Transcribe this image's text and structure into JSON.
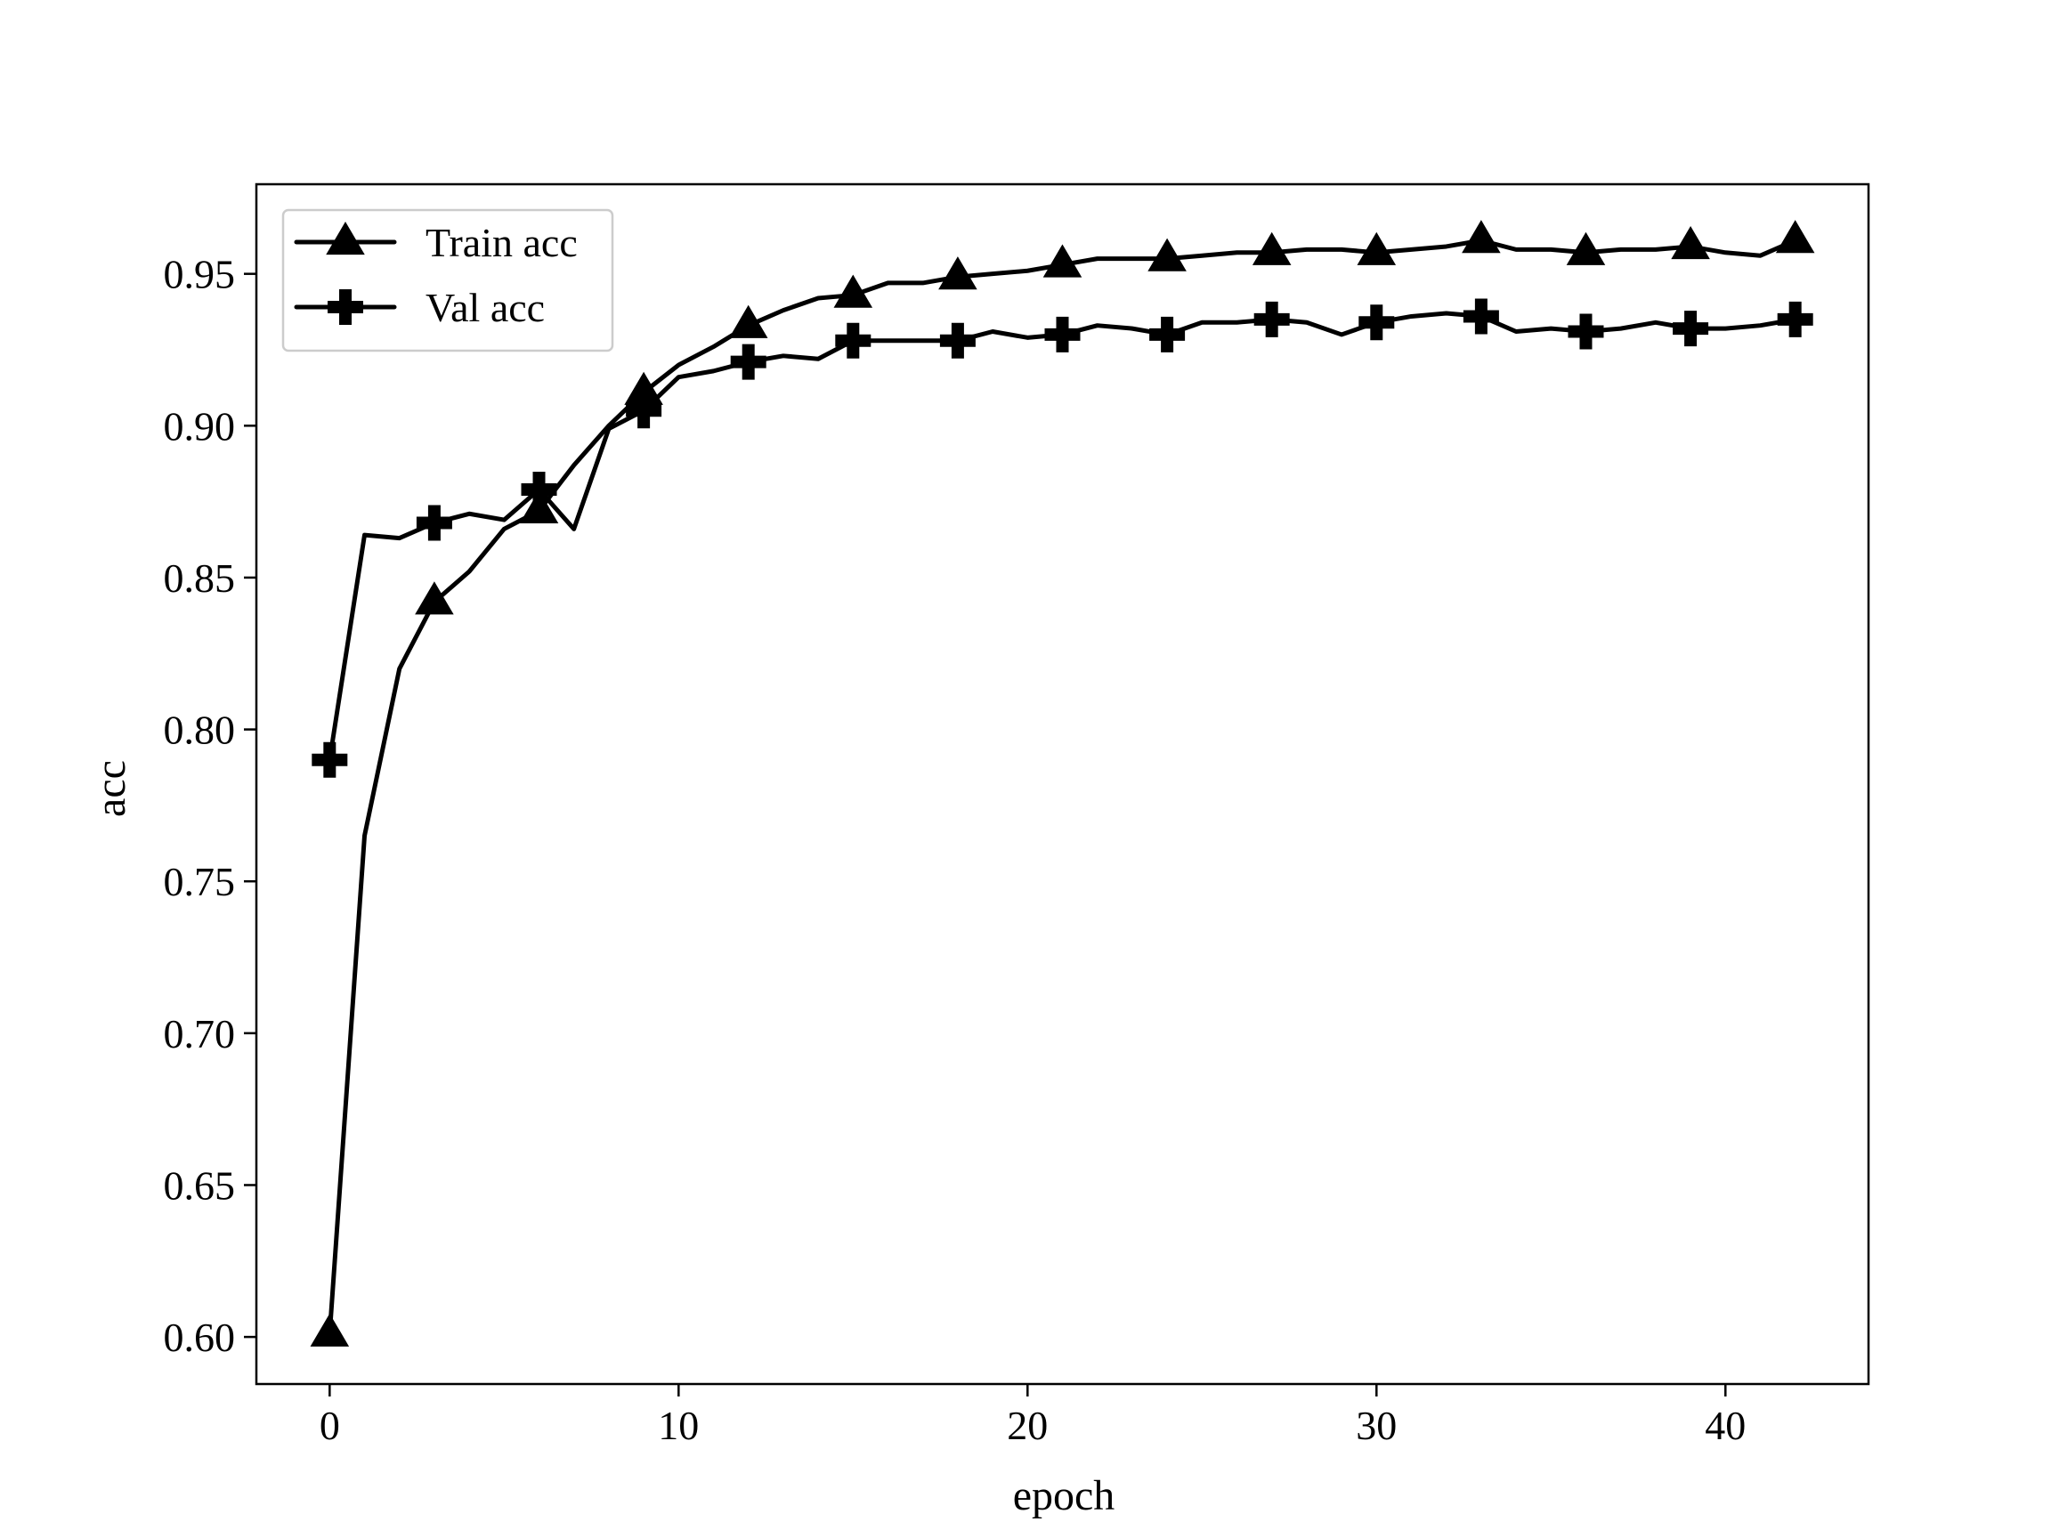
{
  "chart_data": {
    "type": "line",
    "title": "",
    "xlabel": "epoch",
    "ylabel": "acc",
    "xlim": [
      -2.1,
      44.1
    ],
    "ylim": [
      0.5845,
      0.9795
    ],
    "x_ticks": [
      0,
      10,
      20,
      30,
      40
    ],
    "x_tick_labels": [
      "0",
      "10",
      "20",
      "30",
      "40"
    ],
    "y_ticks": [
      0.6,
      0.65,
      0.7,
      0.75,
      0.8,
      0.85,
      0.9,
      0.95
    ],
    "y_tick_labels": [
      "0.60",
      "0.65",
      "0.70",
      "0.75",
      "0.80",
      "0.85",
      "0.90",
      "0.95"
    ],
    "grid": false,
    "legend_position": "top-left",
    "x": [
      0,
      1,
      2,
      3,
      4,
      5,
      6,
      7,
      8,
      9,
      10,
      11,
      12,
      13,
      14,
      15,
      16,
      17,
      18,
      19,
      20,
      21,
      22,
      23,
      24,
      25,
      26,
      27,
      28,
      29,
      30,
      31,
      32,
      33,
      34,
      35,
      36,
      37,
      38,
      39,
      40,
      41,
      42
    ],
    "series": [
      {
        "name": "Train acc",
        "marker": "triangle",
        "marker_every": 3,
        "values": [
          0.601,
          0.765,
          0.82,
          0.842,
          0.852,
          0.866,
          0.872,
          0.887,
          0.9,
          0.911,
          0.92,
          0.926,
          0.933,
          0.938,
          0.942,
          0.943,
          0.947,
          0.947,
          0.949,
          0.95,
          0.951,
          0.953,
          0.955,
          0.955,
          0.955,
          0.956,
          0.957,
          0.957,
          0.958,
          0.958,
          0.957,
          0.958,
          0.959,
          0.961,
          0.958,
          0.958,
          0.957,
          0.958,
          0.958,
          0.959,
          0.957,
          0.956,
          0.961
        ]
      },
      {
        "name": "Val acc",
        "marker": "plus",
        "marker_every": 3,
        "values": [
          0.79,
          0.864,
          0.863,
          0.868,
          0.871,
          0.869,
          0.879,
          0.866,
          0.899,
          0.905,
          0.916,
          0.918,
          0.921,
          0.923,
          0.922,
          0.928,
          0.928,
          0.928,
          0.928,
          0.931,
          0.929,
          0.93,
          0.933,
          0.932,
          0.93,
          0.934,
          0.934,
          0.935,
          0.934,
          0.93,
          0.934,
          0.936,
          0.937,
          0.936,
          0.931,
          0.932,
          0.931,
          0.932,
          0.934,
          0.932,
          0.932,
          0.933,
          0.935
        ]
      }
    ]
  }
}
